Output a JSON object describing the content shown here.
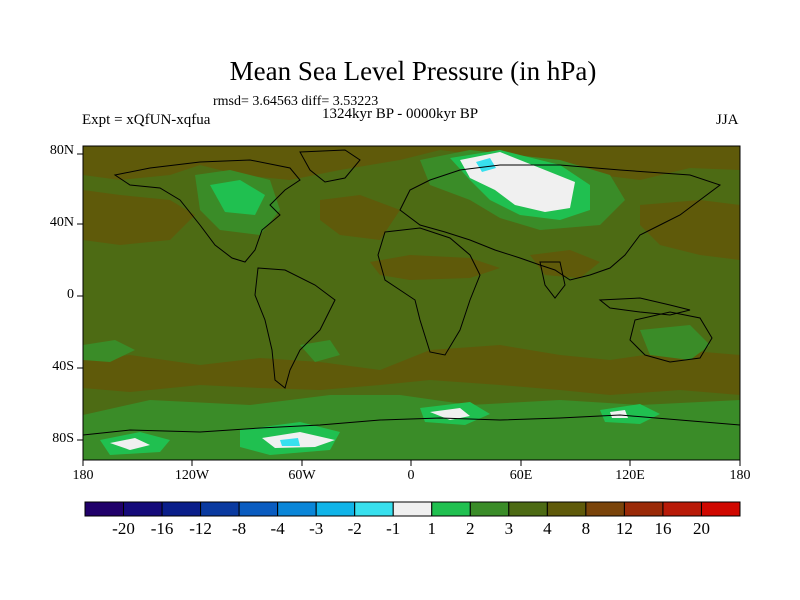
{
  "title": "Mean Sea Level Pressure (in hPa)",
  "stats": "rmsd= 3.64563 diff= 3.53223",
  "period": "1324kyr BP - 0000kyr BP",
  "experiment": "Expt = xQfUN-xqfua",
  "season": "JJA",
  "lat_ticks": [
    "80N",
    "40N",
    "0",
    "40S",
    "80S"
  ],
  "lon_ticks": [
    "180",
    "120W",
    "60W",
    "0",
    "60E",
    "120E",
    "180"
  ],
  "colorbar": {
    "labels": [
      "-20",
      "-16",
      "-12",
      "-8",
      "-4",
      "-3",
      "-2",
      "-1",
      "1",
      "2",
      "3",
      "4",
      "8",
      "12",
      "16",
      "20"
    ],
    "colors": [
      "#20006a",
      "#150a7a",
      "#0a1e8a",
      "#0a3aa0",
      "#0a5cc0",
      "#0a86d8",
      "#10b4e8",
      "#38e0ee",
      "#f0f0f0",
      "#20c050",
      "#3a8c28",
      "#4d6b14",
      "#5f5a0a",
      "#7a440a",
      "#9a2a08",
      "#b81a08",
      "#d00800"
    ]
  },
  "map": {
    "base_color": "#4d6b14",
    "brown_color": "#5f5a0a",
    "light_green": "#3a8c28",
    "bright_green": "#20c050",
    "white": "#f0f0f0",
    "cyan": "#38e0ee"
  }
}
